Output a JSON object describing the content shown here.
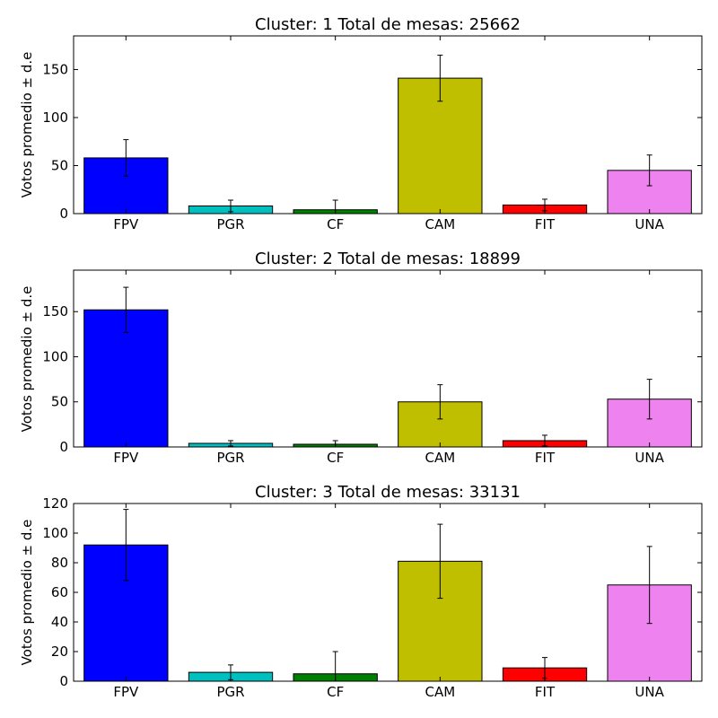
{
  "chart_data": [
    {
      "type": "bar",
      "title": "Cluster: 1 Total de mesas: 25662",
      "ylabel": "Votos promedio  ± d.e",
      "xlabel": "",
      "categories": [
        "FPV",
        "PGR",
        "CF",
        "CAM",
        "FIT",
        "UNA"
      ],
      "values": [
        58,
        8,
        4,
        141,
        9,
        45
      ],
      "errors": [
        19,
        6,
        10,
        24,
        6,
        16
      ],
      "colors": [
        "#0000ff",
        "#00bfbf",
        "#008000",
        "#bfbf00",
        "#ff0000",
        "#ee82ee"
      ],
      "ylim": [
        0,
        185
      ],
      "yticks": [
        0,
        50,
        100,
        150
      ],
      "grid": false,
      "legend": "none"
    },
    {
      "type": "bar",
      "title": "Cluster: 2 Total de mesas: 18899",
      "ylabel": "Votos promedio  ± d.e",
      "xlabel": "",
      "categories": [
        "FPV",
        "PGR",
        "CF",
        "CAM",
        "FIT",
        "UNA"
      ],
      "values": [
        152,
        4,
        3,
        50,
        7,
        53
      ],
      "errors": [
        25,
        3,
        4,
        19,
        6,
        22
      ],
      "colors": [
        "#0000ff",
        "#00bfbf",
        "#008000",
        "#bfbf00",
        "#ff0000",
        "#ee82ee"
      ],
      "ylim": [
        0,
        196
      ],
      "yticks": [
        0,
        50,
        100,
        150
      ],
      "grid": false,
      "legend": "none"
    },
    {
      "type": "bar",
      "title": "Cluster: 3 Total de mesas: 33131",
      "ylabel": "Votos promedio  ± d.e",
      "xlabel": "",
      "categories": [
        "FPV",
        "PGR",
        "CF",
        "CAM",
        "FIT",
        "UNA"
      ],
      "values": [
        92,
        6,
        5,
        81,
        9,
        65
      ],
      "errors": [
        24,
        5,
        15,
        25,
        7,
        26
      ],
      "colors": [
        "#0000ff",
        "#00bfbf",
        "#008000",
        "#bfbf00",
        "#ff0000",
        "#ee82ee"
      ],
      "ylim": [
        0,
        120
      ],
      "yticks": [
        0,
        20,
        40,
        60,
        80,
        100,
        120
      ],
      "grid": false,
      "legend": "none"
    }
  ]
}
